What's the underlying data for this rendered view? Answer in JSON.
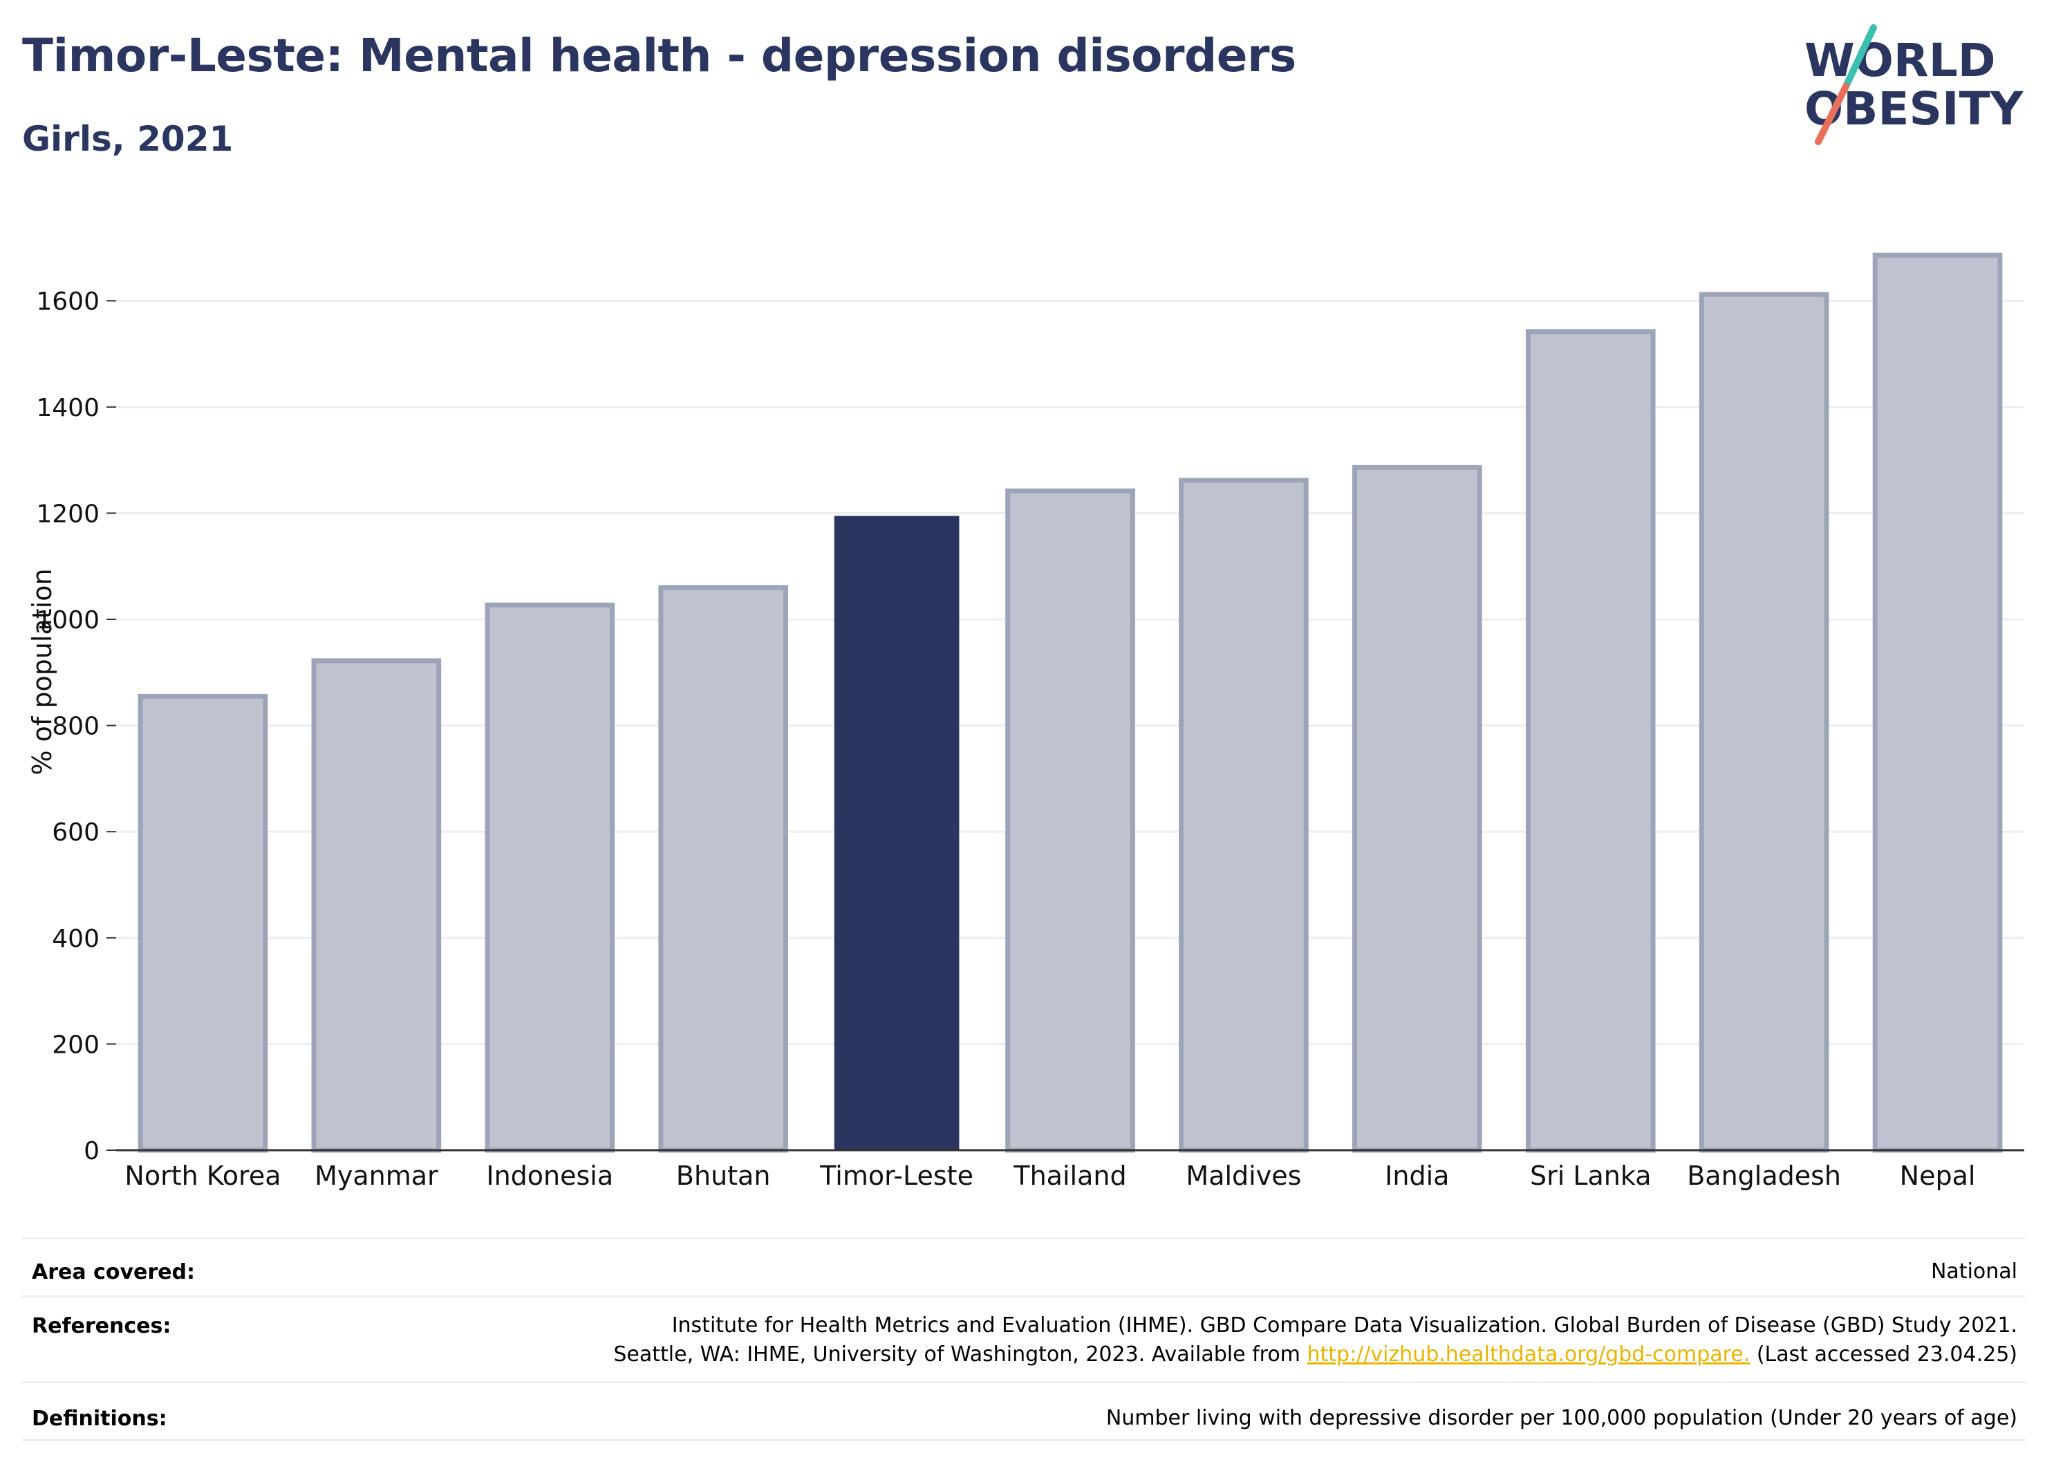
{
  "header": {
    "title": "Timor-Leste: Mental health - depression disorders",
    "subtitle": "Girls, 2021"
  },
  "logo": {
    "line1": "WORLD",
    "line2": "OBESITY",
    "slash_colors": [
      "#3bbfb0",
      "#e8705a"
    ]
  },
  "chart_data": {
    "type": "bar",
    "title": "Timor-Leste: Mental health - depression disorders",
    "subtitle": "Girls, 2021",
    "xlabel": "",
    "ylabel": "% of population",
    "categories": [
      "North Korea",
      "Myanmar",
      "Indonesia",
      "Bhutan",
      "Timor-Leste",
      "Thailand",
      "Maldives",
      "India",
      "Sri Lanka",
      "Bangladesh",
      "Nepal"
    ],
    "values": [
      855,
      922,
      1027,
      1060,
      1195,
      1242,
      1262,
      1286,
      1542,
      1612,
      1686
    ],
    "highlight": "Timor-Leste",
    "ylim": [
      0,
      1750
    ],
    "yticks": [
      0,
      200,
      400,
      600,
      800,
      1000,
      1200,
      1400,
      1600
    ],
    "grid": true,
    "colors": {
      "bar": "#bfc3d0",
      "bar_edge": "#9ea4b8",
      "highlight": "#2b3660",
      "grid": "#eceef3",
      "axis": "#333333"
    }
  },
  "info": {
    "area_label": "Area covered:",
    "area_value": "National",
    "references_label": "References:",
    "references_line1": "Institute for Health Metrics and Evaluation (IHME). GBD Compare Data Visualization. Global Burden of Disease (GBD) Study 2021.",
    "references_line2_pre": "Seattle, WA: IHME, University of Washington, 2023. Available from ",
    "references_link": "http://vizhub.healthdata.org/gbd-compare.",
    "references_line2_post": " (Last accessed 23.04.25)",
    "definitions_label": "Definitions:",
    "definitions_value": "Number living with depressive disorder per 100,000 population (Under 20 years of age)"
  }
}
